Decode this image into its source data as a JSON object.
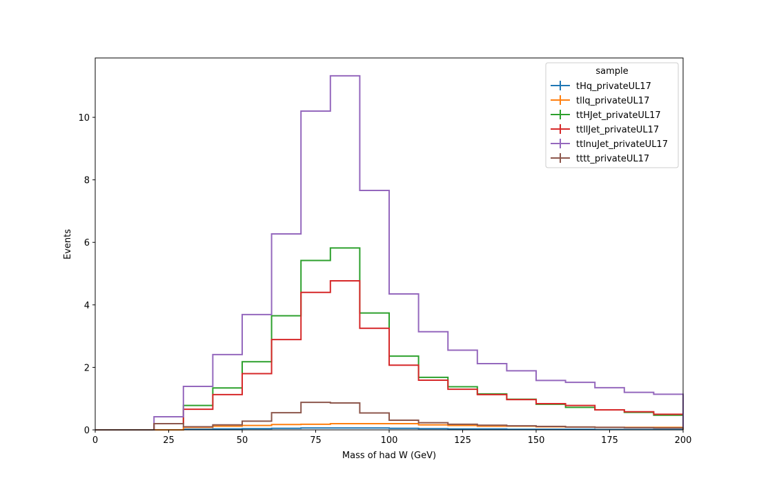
{
  "chart_data": {
    "type": "line",
    "title": "",
    "xlabel": "Mass of had W (GeV)",
    "ylabel": "Events",
    "xlim": [
      0,
      200
    ],
    "ylim": [
      0,
      11.9
    ],
    "xticks": [
      0,
      25,
      50,
      75,
      100,
      125,
      150,
      175,
      200
    ],
    "yticks": [
      0,
      2,
      4,
      6,
      8,
      10
    ],
    "grid": false,
    "legend": {
      "title": "sample",
      "placement": "upper right"
    },
    "bin_edges": [
      0,
      10,
      20,
      30,
      40,
      50,
      60,
      70,
      80,
      90,
      100,
      110,
      120,
      130,
      140,
      150,
      160,
      170,
      180,
      190,
      200
    ],
    "series": [
      {
        "name": "tHq_privateUL17",
        "color": "#1f77b4",
        "values": [
          0,
          0,
          0,
          0.02,
          0.03,
          0.04,
          0.05,
          0.06,
          0.06,
          0.06,
          0.05,
          0.04,
          0.03,
          0.03,
          0.02,
          0.02,
          0.02,
          0.01,
          0.01,
          0.01
        ]
      },
      {
        "name": "tllq_privateUL17",
        "color": "#ff7f0e",
        "values": [
          0,
          0,
          0,
          0.08,
          0.12,
          0.14,
          0.17,
          0.18,
          0.2,
          0.2,
          0.2,
          0.16,
          0.14,
          0.12,
          0.12,
          0.1,
          0.09,
          0.08,
          0.08,
          0.08
        ]
      },
      {
        "name": "ttHJet_privateUL17",
        "color": "#2ca02c",
        "values": [
          0,
          0,
          0.2,
          0.78,
          1.34,
          2.18,
          3.65,
          5.42,
          5.82,
          3.74,
          2.36,
          1.68,
          1.38,
          1.15,
          0.98,
          0.82,
          0.72,
          0.64,
          0.56,
          0.47
        ]
      },
      {
        "name": "ttllJet_privateUL17",
        "color": "#d62728",
        "values": [
          0,
          0,
          0.2,
          0.66,
          1.13,
          1.8,
          2.89,
          4.4,
          4.77,
          3.25,
          2.07,
          1.59,
          1.3,
          1.13,
          0.97,
          0.84,
          0.78,
          0.64,
          0.58,
          0.5
        ]
      },
      {
        "name": "ttlnuJet_privateUL17",
        "color": "#9467bd",
        "values": [
          0,
          0,
          0.42,
          1.39,
          2.41,
          3.69,
          6.27,
          10.2,
          11.33,
          7.66,
          4.35,
          3.14,
          2.55,
          2.12,
          1.89,
          1.58,
          1.52,
          1.35,
          1.2,
          1.14
        ]
      },
      {
        "name": "tttt_privateUL17",
        "color": "#8c564b",
        "values": [
          0,
          0,
          0.2,
          0.1,
          0.16,
          0.28,
          0.55,
          0.88,
          0.86,
          0.54,
          0.31,
          0.23,
          0.18,
          0.15,
          0.13,
          0.11,
          0.09,
          0.08,
          0.07,
          0.06
        ]
      }
    ]
  }
}
